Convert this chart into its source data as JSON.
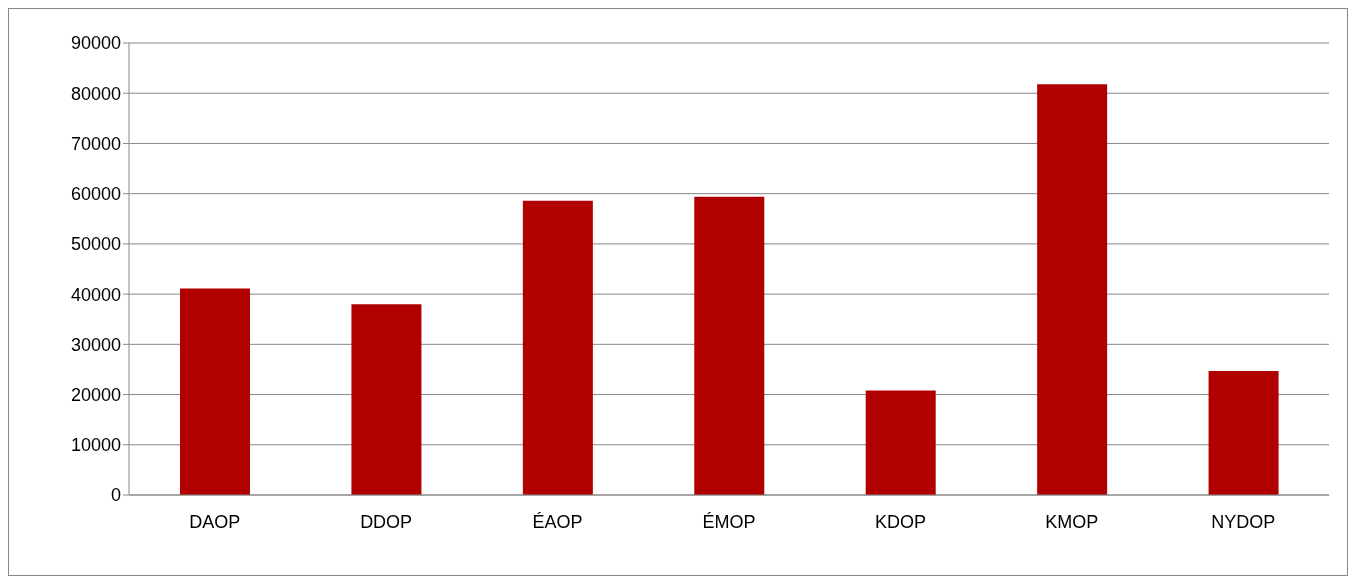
{
  "chart_data": {
    "type": "bar",
    "categories": [
      "DAOP",
      "DDOP",
      "ÉAOP",
      "ÉMOP",
      "KDOP",
      "KMOP",
      "NYDOP"
    ],
    "values": [
      41100,
      38000,
      58600,
      59400,
      20800,
      81800,
      24700
    ],
    "color": "#b00000",
    "ylim": [
      0,
      90000
    ],
    "yticks": [
      0,
      10000,
      20000,
      30000,
      40000,
      50000,
      60000,
      70000,
      80000,
      90000
    ],
    "grid": "y",
    "legend": false
  }
}
